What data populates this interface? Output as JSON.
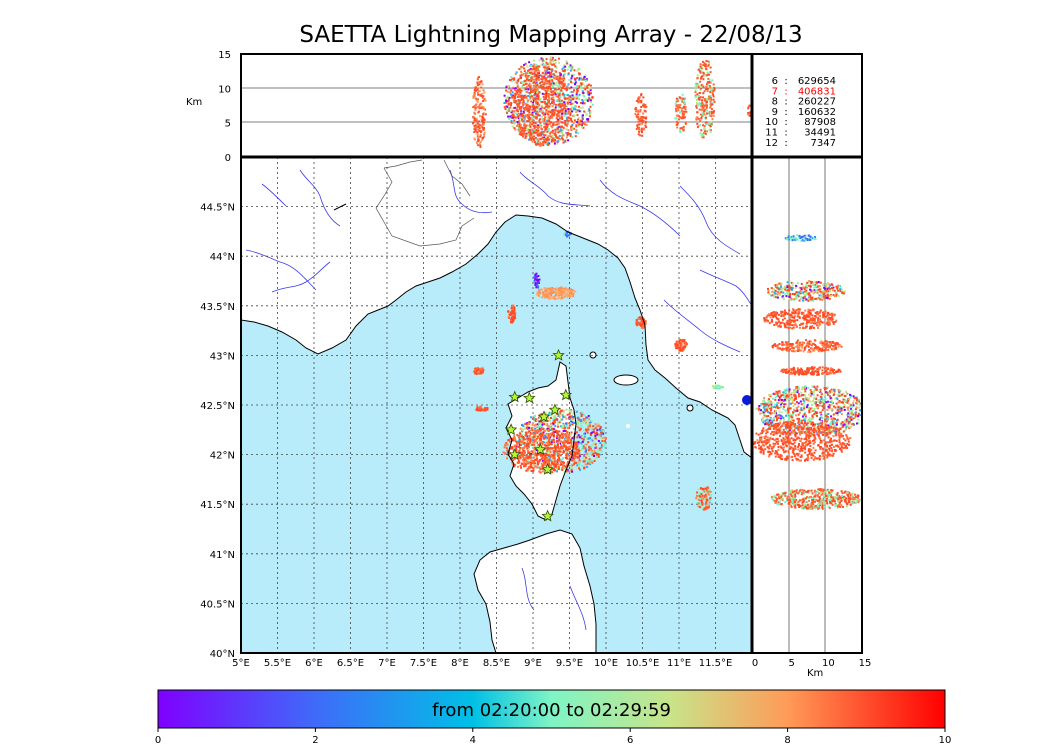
{
  "title": "SAETTA Lightning Mapping Array - 22/08/13",
  "colors": {
    "sea": "#b8ecfb",
    "land": "#ffffff",
    "coast": "#000000",
    "rivers": "#3a3ae8",
    "borders": "#555555",
    "grid": "#444444",
    "highlight": "#ff0000"
  },
  "map": {
    "lon_range": [
      5,
      12
    ],
    "lat_range": [
      40,
      45
    ],
    "lon_ticks": [
      "5°E",
      "5.5°E",
      "6°E",
      "6.5°E",
      "7°E",
      "7.5°E",
      "8°E",
      "8.5°E",
      "9°E",
      "9.5°E",
      "10°E",
      "10.5°E",
      "11°E",
      "11.5°E"
    ],
    "lat_ticks": [
      "40°N",
      "40.5°N",
      "41°N",
      "41.5°N",
      "42°N",
      "42.5°N",
      "43°N",
      "43.5°N",
      "44°N",
      "44.5°N"
    ]
  },
  "altitude_panel": {
    "unit": "Km",
    "range": [
      0,
      15
    ],
    "ticks": [
      "0",
      "5",
      "10",
      "15"
    ]
  },
  "right_panel": {
    "unit": "Km",
    "range": [
      0,
      15
    ],
    "ticks": [
      "0",
      "5",
      "10",
      "15"
    ]
  },
  "stats": [
    {
      "level": "6",
      "count": "629654",
      "highlight": false
    },
    {
      "level": "7",
      "count": "406831",
      "highlight": true
    },
    {
      "level": "8",
      "count": "260227",
      "highlight": false
    },
    {
      "level": "9",
      "count": "160632",
      "highlight": false
    },
    {
      "level": "10",
      "count": "87908",
      "highlight": false
    },
    {
      "level": "11",
      "count": "34491",
      "highlight": false
    },
    {
      "level": "12",
      "count": "7347",
      "highlight": false
    }
  ],
  "colorbar": {
    "label": "from 02:20:00 to 02:29:59",
    "ticks": [
      "0",
      "2",
      "4",
      "6",
      "8",
      "10"
    ]
  },
  "stations": [
    {
      "lon": 9.35,
      "lat": 43.0
    },
    {
      "lon": 9.45,
      "lat": 42.6
    },
    {
      "lon": 8.75,
      "lat": 42.58
    },
    {
      "lon": 8.95,
      "lat": 42.57
    },
    {
      "lon": 9.3,
      "lat": 42.45
    },
    {
      "lon": 9.15,
      "lat": 42.38
    },
    {
      "lon": 8.7,
      "lat": 42.25
    },
    {
      "lon": 9.1,
      "lat": 42.05
    },
    {
      "lon": 8.75,
      "lat": 42.0
    },
    {
      "lon": 9.2,
      "lat": 41.85
    },
    {
      "lon": 9.2,
      "lat": 41.38
    }
  ]
}
